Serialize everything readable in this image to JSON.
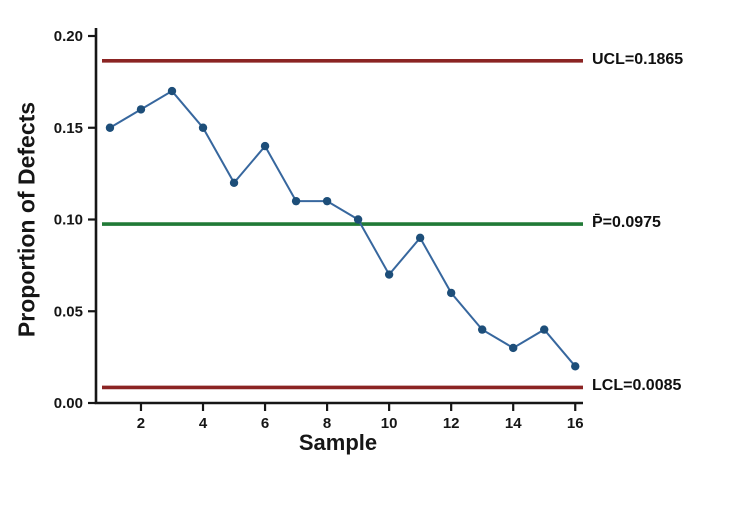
{
  "chart_data": {
    "type": "line",
    "title": "",
    "xlabel": "Sample",
    "ylabel": "Proportion of Defects",
    "x": [
      1,
      2,
      3,
      4,
      5,
      6,
      7,
      8,
      9,
      10,
      11,
      12,
      13,
      14,
      15,
      16
    ],
    "values": [
      0.15,
      0.16,
      0.17,
      0.15,
      0.12,
      0.14,
      0.11,
      0.11,
      0.1,
      0.07,
      0.09,
      0.06,
      0.04,
      0.03,
      0.04,
      0.02
    ],
    "xlim": [
      0.55,
      16.25
    ],
    "ylim": [
      0.0,
      0.2
    ],
    "x_ticks": [
      2,
      4,
      6,
      8,
      10,
      12,
      14,
      16
    ],
    "y_ticks": [
      0.0,
      0.05,
      0.1,
      0.15,
      0.2
    ],
    "grid": false,
    "legend": "none",
    "series_color": "#37679e",
    "marker_color": "#1d4e79",
    "axis_color": "#161616",
    "reference_lines": [
      {
        "name": "UCL",
        "label": "UCL=0.1865",
        "value": 0.1865,
        "color": "#8b2423"
      },
      {
        "name": "center",
        "label": "P̄=0.0975",
        "value": 0.0975,
        "color": "#217a36"
      },
      {
        "name": "LCL",
        "label": "LCL=0.0085",
        "value": 0.0085,
        "color": "#8b2423"
      }
    ]
  }
}
